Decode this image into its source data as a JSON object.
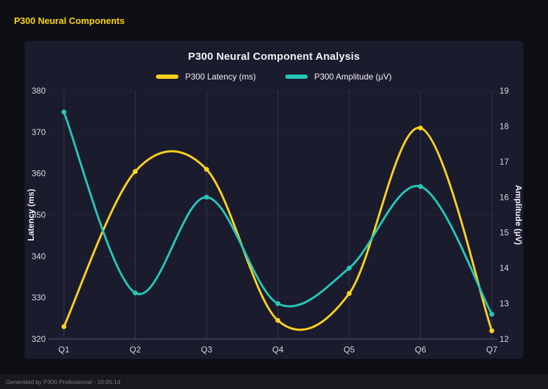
{
  "page": {
    "title": "P300 Neural Components",
    "footer": "Generated by P300 Professional - 10:05:14"
  },
  "colors": {
    "page_bg": "#0e0e15",
    "panel_bg": "#1b1b2e",
    "accent": "#ffd700",
    "text": "#f2f2f6",
    "tick_text": "#d6d6e2",
    "muted": "#7d7d8a",
    "grid_v": "#34344c",
    "grid_h": "#232338",
    "axis_line": "#56566c",
    "footer_bg": "#18181f"
  },
  "chart_data": {
    "type": "line",
    "title": "P300 Neural Component Analysis",
    "categories": [
      "Q1",
      "Q2",
      "Q3",
      "Q4",
      "Q5",
      "Q6",
      "Q7"
    ],
    "series": [
      {
        "name": "P300 Latency (ms)",
        "axis": "left",
        "color": "#ffd21e",
        "values": [
          323,
          360.5,
          361,
          324.5,
          331,
          371,
          322
        ]
      },
      {
        "name": "P300 Amplitude (μV)",
        "axis": "right",
        "color": "#25c7b8",
        "values": [
          18.4,
          13.3,
          16.0,
          13.0,
          14.0,
          16.3,
          12.7
        ]
      }
    ],
    "left_axis": {
      "label": "Latency (ms)",
      "min": 320,
      "max": 380,
      "step": 10
    },
    "right_axis": {
      "label": "Amplitude (μV)",
      "min": 12,
      "max": 19,
      "step": 1
    },
    "legend_position": "top",
    "grid": true,
    "line_style": "smooth"
  }
}
